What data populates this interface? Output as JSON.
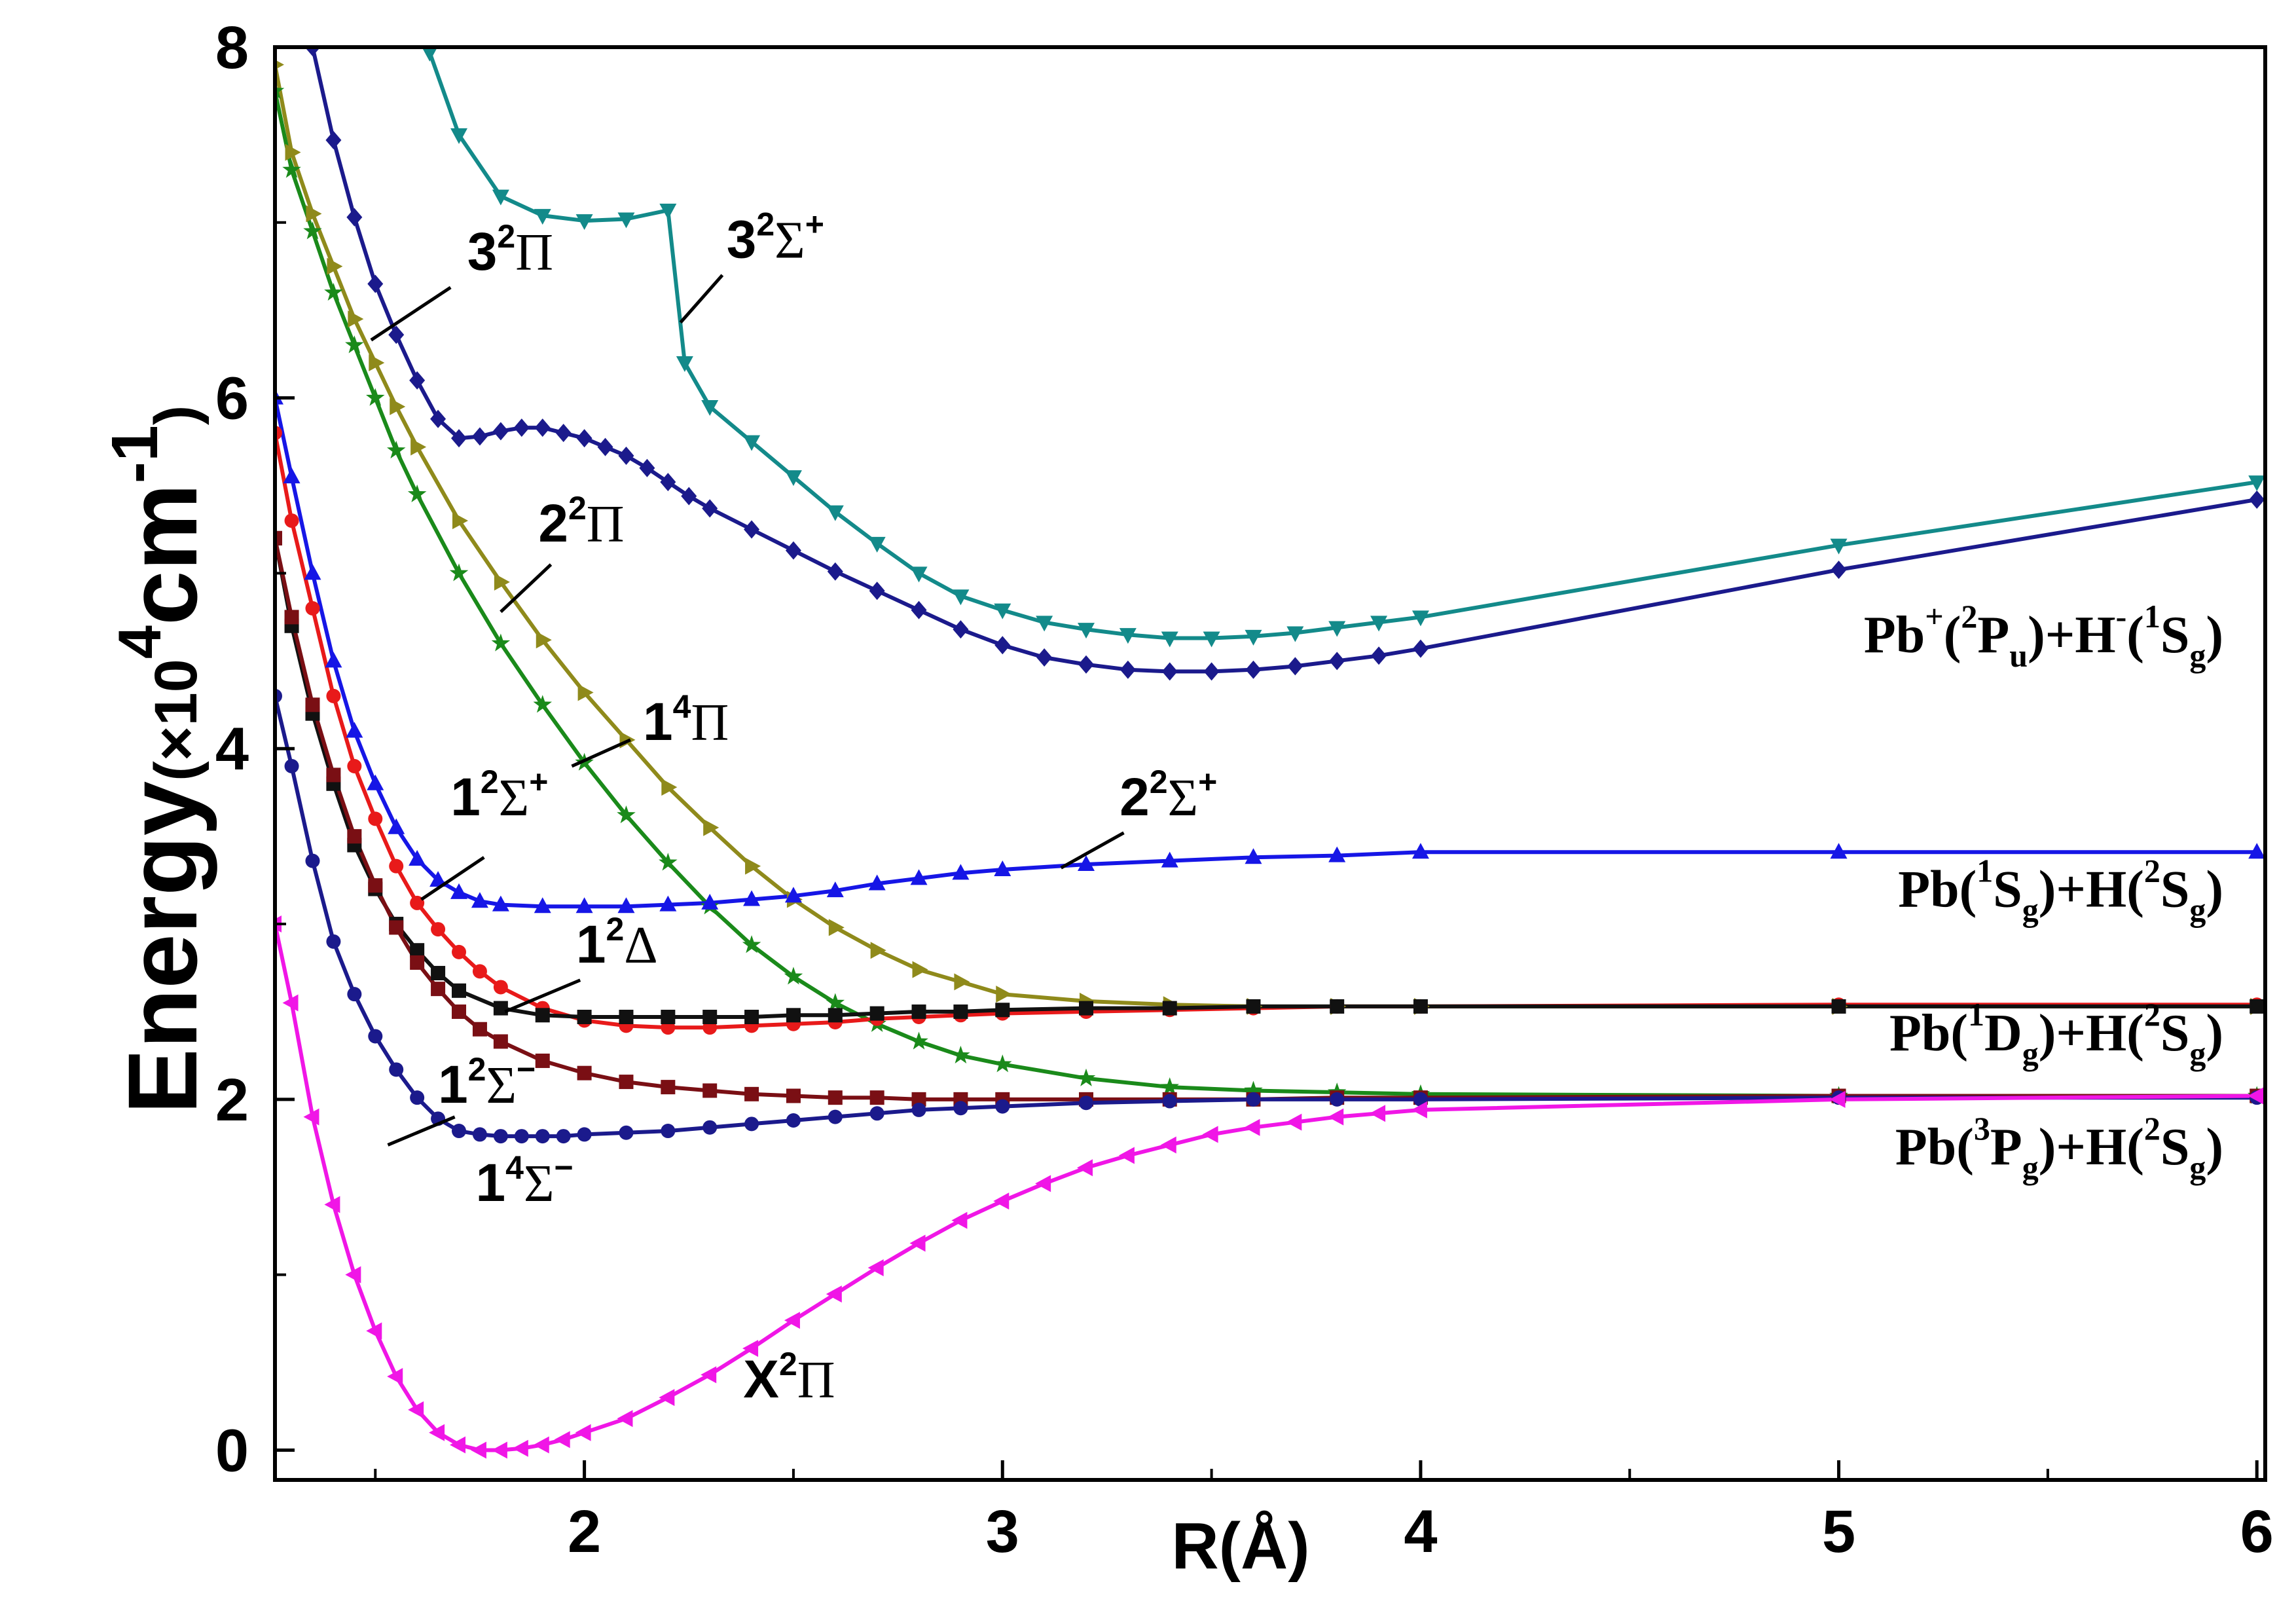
{
  "chart_data": {
    "type": "line",
    "title": "",
    "xlabel": "R(Å)",
    "ylabel": "Energy(×10⁴cm⁻¹)",
    "ylabel_parts": {
      "main": "Energy",
      "unit_open": "(×10",
      "exp": "4",
      "unit": "cm",
      "unit_exp": "-1",
      "unit_close": ")"
    },
    "xlim": [
      1.26,
      6.02
    ],
    "ylim": [
      -0.17,
      8.0
    ],
    "x_ticks": [
      2,
      3,
      4,
      5,
      6
    ],
    "x_tick_labels": [
      "2",
      "3",
      "4",
      "5",
      "6"
    ],
    "y_ticks": [
      0,
      2,
      4,
      6,
      8
    ],
    "y_tick_labels": [
      "0",
      "2",
      "4",
      "6",
      "8"
    ],
    "grid": false,
    "series": [
      {
        "name": "3²Σ⁺",
        "color": "#138a8a",
        "marker": "triangle-down",
        "x": [
          1.63,
          1.7,
          1.8,
          1.9,
          2.0,
          2.1,
          2.2,
          2.24,
          2.3,
          2.4,
          2.5,
          2.6,
          2.7,
          2.8,
          2.9,
          3.0,
          3.1,
          3.2,
          3.3,
          3.4,
          3.5,
          3.6,
          3.7,
          3.8,
          3.9,
          4.0,
          5.0,
          6.0
        ],
        "y": [
          7.97,
          7.5,
          7.15,
          7.04,
          7.01,
          7.02,
          7.07,
          6.2,
          5.95,
          5.75,
          5.55,
          5.35,
          5.17,
          5.0,
          4.87,
          4.79,
          4.72,
          4.68,
          4.65,
          4.63,
          4.63,
          4.64,
          4.66,
          4.69,
          4.72,
          4.75,
          5.16,
          5.52
        ]
      },
      {
        "name": "3²Π",
        "color": "#1b1a8c",
        "marker": "diamond",
        "x": [
          1.35,
          1.4,
          1.45,
          1.5,
          1.55,
          1.6,
          1.65,
          1.7,
          1.75,
          1.8,
          1.85,
          1.9,
          1.95,
          2.0,
          2.05,
          2.1,
          2.15,
          2.2,
          2.25,
          2.3,
          2.4,
          2.5,
          2.6,
          2.7,
          2.8,
          2.9,
          3.0,
          3.1,
          3.2,
          3.3,
          3.4,
          3.5,
          3.6,
          3.7,
          3.8,
          3.9,
          4.0,
          5.0,
          6.0
        ],
        "y": [
          8.0,
          7.47,
          7.03,
          6.65,
          6.36,
          6.1,
          5.88,
          5.77,
          5.78,
          5.81,
          5.83,
          5.83,
          5.8,
          5.77,
          5.72,
          5.67,
          5.6,
          5.52,
          5.44,
          5.37,
          5.25,
          5.13,
          5.01,
          4.9,
          4.79,
          4.68,
          4.59,
          4.52,
          4.48,
          4.45,
          4.44,
          4.44,
          4.45,
          4.47,
          4.5,
          4.53,
          4.57,
          5.02,
          5.42
        ]
      },
      {
        "name": "2²Π",
        "color": "#8f8a1b",
        "marker": "triangle-right",
        "x": [
          1.26,
          1.3,
          1.35,
          1.4,
          1.45,
          1.5,
          1.55,
          1.6,
          1.7,
          1.8,
          1.9,
          2.0,
          2.1,
          2.2,
          2.3,
          2.4,
          2.5,
          2.6,
          2.7,
          2.8,
          2.9,
          3.0,
          3.2,
          3.4,
          3.6,
          3.8,
          4.0,
          5.0,
          6.0
        ],
        "y": [
          7.9,
          7.4,
          7.05,
          6.75,
          6.45,
          6.2,
          5.95,
          5.72,
          5.3,
          4.95,
          4.62,
          4.32,
          4.05,
          3.78,
          3.55,
          3.33,
          3.14,
          2.98,
          2.85,
          2.74,
          2.67,
          2.6,
          2.56,
          2.54,
          2.53,
          2.53,
          2.53,
          2.53,
          2.53
        ]
      },
      {
        "name": "1⁴Π",
        "color": "#1a8a1a",
        "marker": "star",
        "x": [
          1.26,
          1.3,
          1.35,
          1.4,
          1.45,
          1.5,
          1.55,
          1.6,
          1.7,
          1.8,
          1.9,
          2.0,
          2.1,
          2.2,
          2.3,
          2.4,
          2.5,
          2.6,
          2.7,
          2.8,
          2.9,
          3.0,
          3.2,
          3.4,
          3.6,
          3.8,
          4.0,
          5.0,
          6.0
        ],
        "y": [
          7.75,
          7.3,
          6.95,
          6.6,
          6.3,
          6.0,
          5.7,
          5.45,
          5.0,
          4.6,
          4.25,
          3.92,
          3.62,
          3.35,
          3.1,
          2.88,
          2.7,
          2.55,
          2.43,
          2.33,
          2.25,
          2.2,
          2.12,
          2.07,
          2.05,
          2.04,
          2.03,
          2.02,
          2.02
        ]
      },
      {
        "name": "2²Σ⁺",
        "color": "#1616e6",
        "marker": "triangle-up",
        "x": [
          1.26,
          1.3,
          1.35,
          1.4,
          1.45,
          1.5,
          1.55,
          1.6,
          1.65,
          1.7,
          1.75,
          1.8,
          1.9,
          2.0,
          2.1,
          2.2,
          2.3,
          2.4,
          2.5,
          2.6,
          2.7,
          2.8,
          2.9,
          3.0,
          3.2,
          3.4,
          3.6,
          3.8,
          4.0,
          5.0,
          6.0
        ],
        "y": [
          6.0,
          5.55,
          5.0,
          4.5,
          4.1,
          3.8,
          3.55,
          3.37,
          3.25,
          3.18,
          3.13,
          3.11,
          3.1,
          3.1,
          3.1,
          3.11,
          3.12,
          3.14,
          3.16,
          3.19,
          3.23,
          3.26,
          3.29,
          3.31,
          3.34,
          3.36,
          3.38,
          3.39,
          3.41,
          3.41,
          3.41
        ]
      },
      {
        "name": "1²Σ⁺",
        "color": "#e81a1a",
        "marker": "circle",
        "x": [
          1.26,
          1.3,
          1.35,
          1.4,
          1.45,
          1.5,
          1.55,
          1.6,
          1.65,
          1.7,
          1.75,
          1.8,
          1.9,
          2.0,
          2.1,
          2.2,
          2.3,
          2.4,
          2.5,
          2.6,
          2.7,
          2.8,
          2.9,
          3.0,
          3.2,
          3.4,
          3.6,
          3.8,
          4.0,
          5.0,
          6.0
        ],
        "y": [
          5.8,
          5.3,
          4.8,
          4.3,
          3.9,
          3.6,
          3.33,
          3.12,
          2.97,
          2.84,
          2.73,
          2.64,
          2.52,
          2.45,
          2.42,
          2.41,
          2.41,
          2.42,
          2.43,
          2.44,
          2.46,
          2.47,
          2.48,
          2.49,
          2.5,
          2.51,
          2.52,
          2.53,
          2.53,
          2.54,
          2.54
        ]
      },
      {
        "name": "1²Δ",
        "color": "#111111",
        "marker": "square",
        "x": [
          1.26,
          1.3,
          1.35,
          1.4,
          1.45,
          1.5,
          1.55,
          1.6,
          1.65,
          1.7,
          1.8,
          1.9,
          2.0,
          2.1,
          2.2,
          2.3,
          2.4,
          2.5,
          2.6,
          2.7,
          2.8,
          2.9,
          3.0,
          3.2,
          3.4,
          3.6,
          3.8,
          4.0,
          5.0,
          6.0
        ],
        "y": [
          5.2,
          4.7,
          4.2,
          3.8,
          3.45,
          3.2,
          3.0,
          2.85,
          2.72,
          2.62,
          2.52,
          2.48,
          2.47,
          2.47,
          2.47,
          2.47,
          2.47,
          2.48,
          2.48,
          2.49,
          2.5,
          2.5,
          2.51,
          2.52,
          2.52,
          2.53,
          2.53,
          2.53,
          2.53,
          2.53
        ]
      },
      {
        "name": "1²Σ⁻",
        "color": "#7a0f14",
        "marker": "square",
        "x": [
          1.26,
          1.3,
          1.35,
          1.4,
          1.45,
          1.5,
          1.55,
          1.6,
          1.65,
          1.7,
          1.75,
          1.8,
          1.9,
          2.0,
          2.1,
          2.2,
          2.3,
          2.4,
          2.5,
          2.6,
          2.7,
          2.8,
          2.9,
          3.0,
          3.2,
          3.4,
          3.6,
          3.8,
          4.0,
          5.0,
          6.0
        ],
        "y": [
          5.2,
          4.75,
          4.25,
          3.85,
          3.5,
          3.22,
          2.98,
          2.78,
          2.63,
          2.5,
          2.4,
          2.33,
          2.22,
          2.15,
          2.1,
          2.07,
          2.05,
          2.03,
          2.02,
          2.01,
          2.01,
          2.0,
          2.0,
          2.0,
          2.0,
          2.0,
          2.0,
          2.01,
          2.01,
          2.02,
          2.02
        ]
      },
      {
        "name": "1⁴Σ⁻",
        "color": "#1b1a8c",
        "marker": "circle",
        "x": [
          1.26,
          1.3,
          1.35,
          1.4,
          1.45,
          1.5,
          1.55,
          1.6,
          1.65,
          1.7,
          1.75,
          1.8,
          1.85,
          1.9,
          1.95,
          2.0,
          2.1,
          2.2,
          2.3,
          2.4,
          2.5,
          2.6,
          2.7,
          2.8,
          2.9,
          3.0,
          3.2,
          3.4,
          3.6,
          3.8,
          4.0,
          5.0,
          6.0
        ],
        "y": [
          4.3,
          3.9,
          3.36,
          2.9,
          2.6,
          2.36,
          2.17,
          2.01,
          1.89,
          1.82,
          1.8,
          1.79,
          1.79,
          1.79,
          1.79,
          1.8,
          1.81,
          1.82,
          1.84,
          1.86,
          1.88,
          1.9,
          1.92,
          1.94,
          1.95,
          1.96,
          1.98,
          1.99,
          2.0,
          2.0,
          2.0,
          2.01,
          2.01
        ]
      },
      {
        "name": "X²Π",
        "color": "#f016e6",
        "marker": "triangle-left",
        "x": [
          1.26,
          1.3,
          1.35,
          1.4,
          1.45,
          1.5,
          1.55,
          1.6,
          1.65,
          1.7,
          1.75,
          1.8,
          1.85,
          1.9,
          1.95,
          2.0,
          2.1,
          2.2,
          2.3,
          2.4,
          2.5,
          2.6,
          2.7,
          2.8,
          2.9,
          3.0,
          3.1,
          3.2,
          3.3,
          3.4,
          3.5,
          3.6,
          3.7,
          3.8,
          3.9,
          4.0,
          5.0,
          6.0
        ],
        "y": [
          3.0,
          2.55,
          1.9,
          1.4,
          1.0,
          0.68,
          0.42,
          0.23,
          0.1,
          0.03,
          0.0,
          0.0,
          0.01,
          0.03,
          0.06,
          0.1,
          0.18,
          0.3,
          0.43,
          0.58,
          0.74,
          0.89,
          1.04,
          1.18,
          1.31,
          1.42,
          1.52,
          1.61,
          1.68,
          1.74,
          1.8,
          1.84,
          1.87,
          1.9,
          1.92,
          1.94,
          2.0,
          2.02
        ]
      }
    ],
    "annotations": [
      {
        "id": "a32sig",
        "text": "3",
        "sup": "2",
        "sym": "Σ",
        "sym_sup": "+",
        "x": 2.34,
        "y": 6.8
      },
      {
        "id": "a32pi",
        "text": "3",
        "sup": "2",
        "sym": "Π",
        "sym_sup": "",
        "x": 1.72,
        "y": 6.73
      },
      {
        "id": "a22pi",
        "text": "2",
        "sup": "2",
        "sym": "Π",
        "sym_sup": "",
        "x": 1.89,
        "y": 5.18
      },
      {
        "id": "a14pi",
        "text": "1",
        "sup": "4",
        "sym": "Π",
        "sym_sup": "",
        "x": 2.14,
        "y": 4.05
      },
      {
        "id": "a12sigp",
        "text": "1",
        "sup": "2",
        "sym": "Σ",
        "sym_sup": "+",
        "x": 1.68,
        "y": 3.62
      },
      {
        "id": "a22sig",
        "text": "2",
        "sup": "2",
        "sym": "Σ",
        "sym_sup": "+",
        "x": 3.28,
        "y": 3.62
      },
      {
        "id": "a12del",
        "text": "1",
        "sup": "2",
        "sym": "Δ",
        "sym_sup": "",
        "x": 1.98,
        "y": 2.78
      },
      {
        "id": "a12sigm",
        "text": "1",
        "sup": "2",
        "sym": "Σ",
        "sym_sup": "−",
        "x": 1.65,
        "y": 1.98
      },
      {
        "id": "a14sigm",
        "text": "1",
        "sup": "4",
        "sym": "Σ",
        "sym_sup": "−",
        "x": 1.74,
        "y": 1.42
      },
      {
        "id": "ax2pi",
        "text": "X",
        "sup": "2",
        "sym": "Π",
        "sym_sup": "",
        "x": 2.38,
        "y": 0.3
      }
    ],
    "asymptotes": [
      {
        "id": "asym1",
        "y": 4.55,
        "parts": [
          "Pb",
          "+",
          "(",
          "2",
          "P",
          "u",
          ")+H",
          "-",
          "(",
          "1",
          "S",
          "g",
          ")"
        ]
      },
      {
        "id": "asym2",
        "y": 3.1,
        "parts": [
          "Pb(",
          "",
          "",
          "1",
          "S",
          "g",
          ")+H(",
          "",
          "",
          "2",
          "S",
          "g",
          ")"
        ]
      },
      {
        "id": "asym3",
        "y": 2.28,
        "parts": [
          "Pb(",
          "",
          "",
          "1",
          "D",
          "g",
          ")+H(",
          "",
          "",
          "2",
          "S",
          "g",
          ")"
        ]
      },
      {
        "id": "asym4",
        "y": 1.63,
        "parts": [
          "Pb(",
          "",
          "",
          "3",
          "P",
          "g",
          ")+H(",
          "",
          "",
          "2",
          "S",
          "g",
          ")"
        ]
      }
    ]
  }
}
